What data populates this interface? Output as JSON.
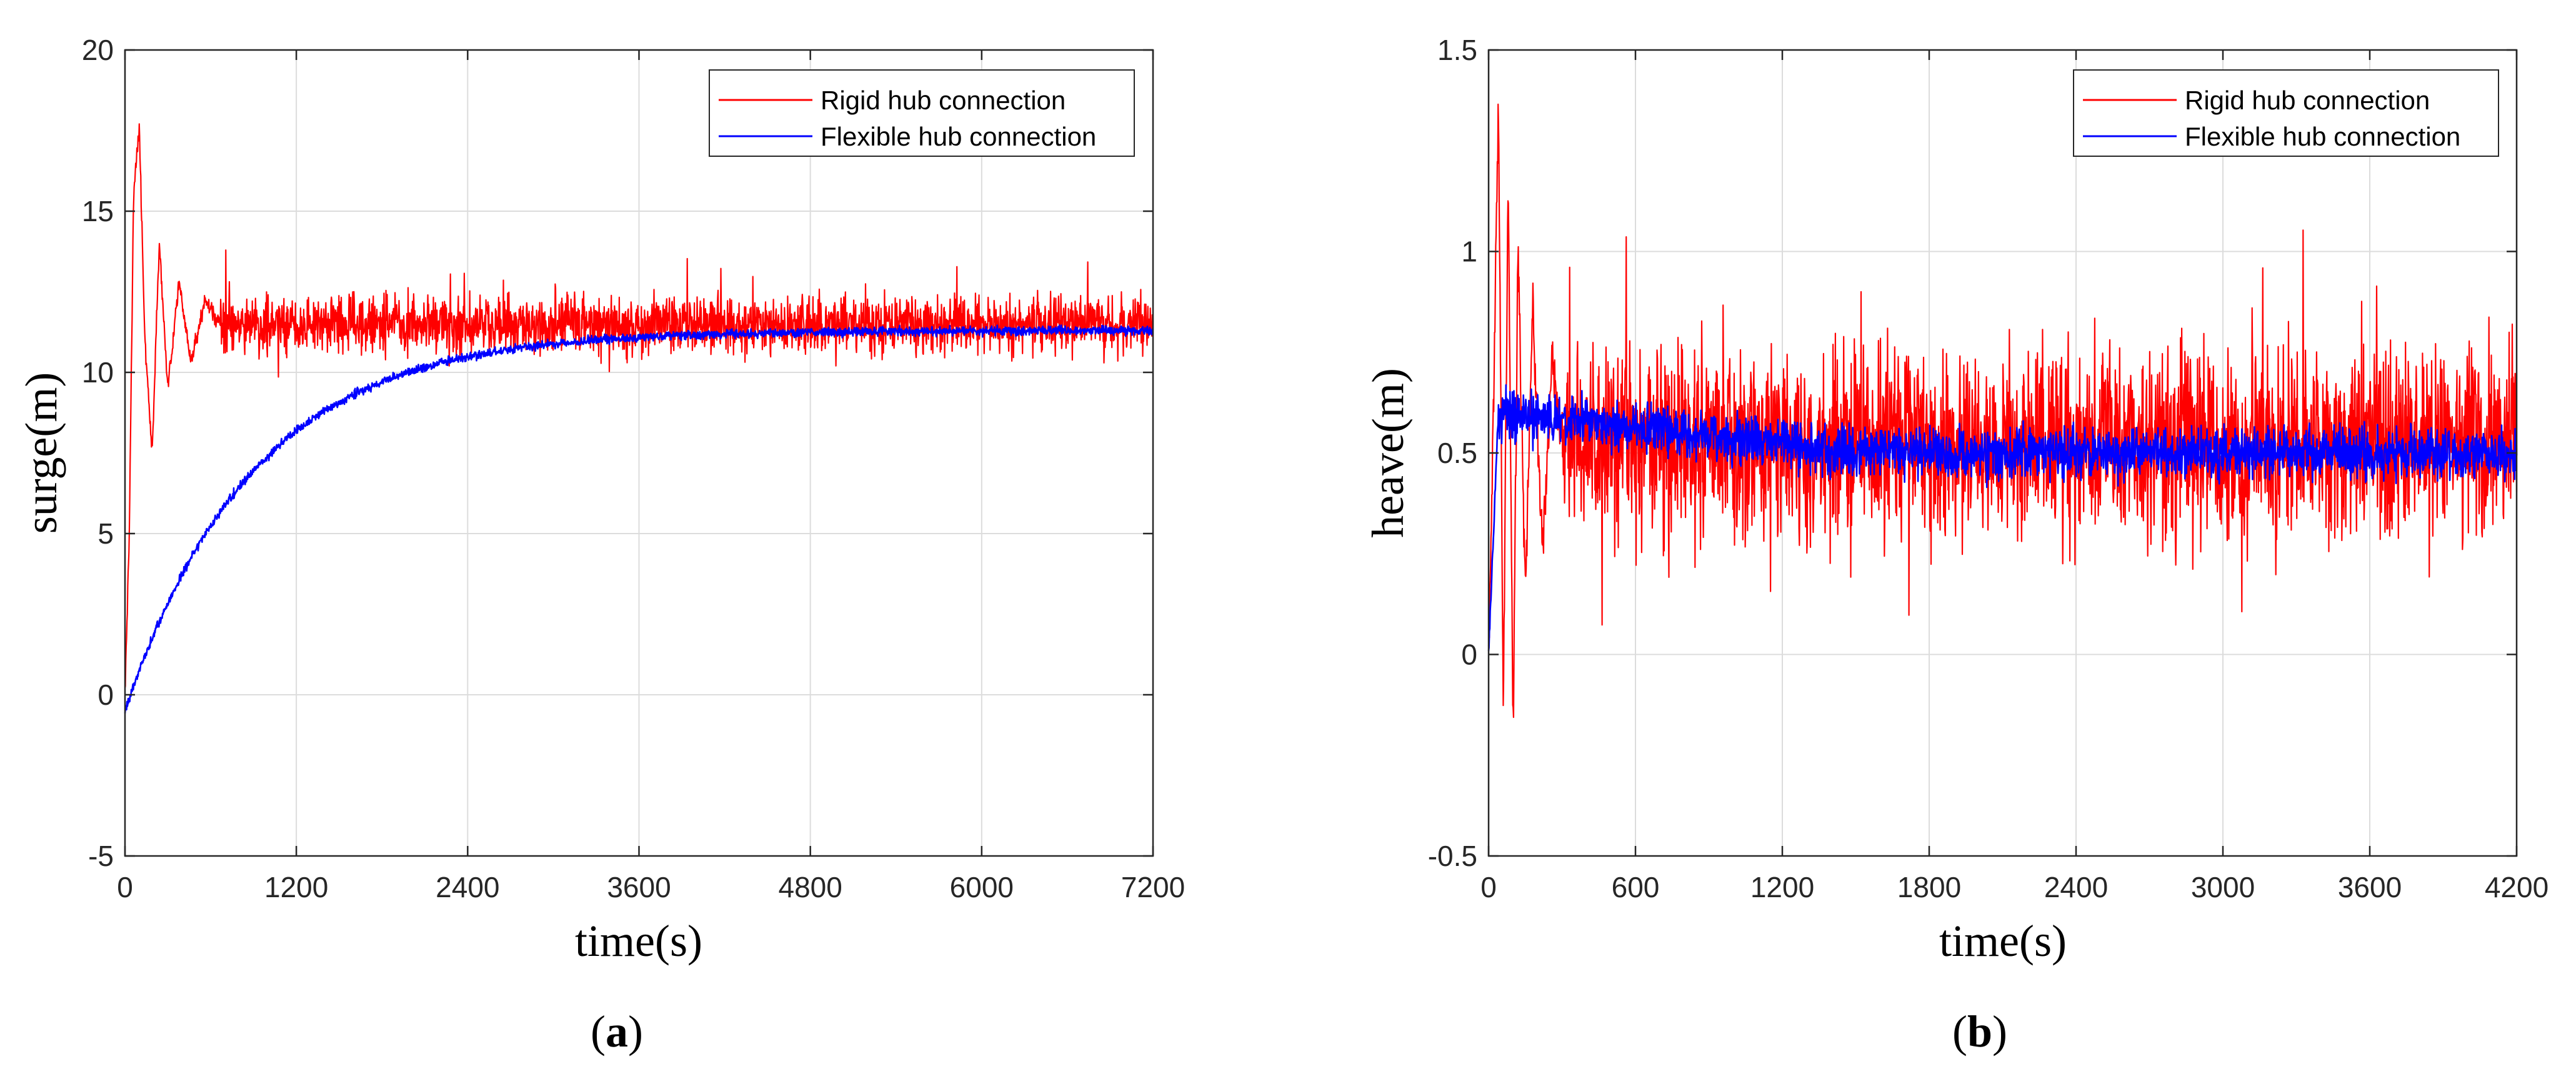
{
  "chart_data": [
    {
      "id": "a",
      "type": "line",
      "panel_label": "a",
      "title": "",
      "xlabel": "time(s)",
      "ylabel": "surge(m)",
      "xlim": [
        0,
        7200
      ],
      "ylim": [
        -5,
        20
      ],
      "xticks": [
        0,
        1200,
        2400,
        3600,
        4800,
        6000,
        7200
      ],
      "yticks": [
        -5,
        0,
        5,
        10,
        15,
        20
      ],
      "xtick_labels": [
        "0",
        "1200",
        "2400",
        "3600",
        "4800",
        "6000",
        "7200"
      ],
      "ytick_labels": [
        "-5",
        "0",
        "5",
        "10",
        "15",
        "20"
      ],
      "grid": true,
      "legend_position": "top-right",
      "series": [
        {
          "name": "Rigid hub connection",
          "color": "#ff0000",
          "model": {
            "kind": "transient_noise",
            "base": 11.5,
            "noise": 1.3,
            "transient": [
              [
                0,
                0
              ],
              [
                30,
                5
              ],
              [
                60,
                15.5
              ],
              [
                100,
                17.6
              ],
              [
                140,
                11
              ],
              [
                190,
                7.5
              ],
              [
                240,
                14
              ],
              [
                300,
                9.5
              ],
              [
                380,
                12.8
              ],
              [
                460,
                10.3
              ],
              [
                560,
                12.2
              ],
              [
                660,
                11.5
              ]
            ]
          }
        },
        {
          "name": "Flexible hub connection",
          "color": "#0000ff",
          "model": {
            "kind": "exp_rise",
            "start": -0.5,
            "end": 11.3,
            "tau": 900,
            "noise": 0.2
          }
        }
      ]
    },
    {
      "id": "b",
      "type": "line",
      "panel_label": "b",
      "title": "",
      "xlabel": "time(s)",
      "ylabel": "heave(m)",
      "xlim": [
        0,
        4200
      ],
      "ylim": [
        -0.5,
        1.5
      ],
      "xticks": [
        0,
        600,
        1200,
        1800,
        2400,
        3000,
        3600,
        4200
      ],
      "yticks": [
        -0.5,
        0,
        0.5,
        1,
        1.5
      ],
      "xtick_labels": [
        "0",
        "600",
        "1200",
        "1800",
        "2400",
        "3000",
        "3600",
        "4200"
      ],
      "ytick_labels": [
        "-0.5",
        "0",
        "0.5",
        "1",
        "1.5"
      ],
      "grid": true,
      "legend_position": "top-right",
      "series": [
        {
          "name": "Rigid hub connection",
          "color": "#ff0000",
          "model": {
            "kind": "transient_noise",
            "base": 0.52,
            "noise": 0.34,
            "transient": [
              [
                0,
                0
              ],
              [
                20,
                0.6
              ],
              [
                40,
                1.4
              ],
              [
                60,
                -0.15
              ],
              [
                80,
                1.2
              ],
              [
                100,
                -0.2
              ],
              [
                120,
                1.03
              ],
              [
                150,
                0.15
              ],
              [
                180,
                0.88
              ],
              [
                220,
                0.25
              ],
              [
                260,
                0.75
              ],
              [
                300,
                0.52
              ]
            ]
          }
        },
        {
          "name": "Flexible hub connection",
          "color": "#0000ff",
          "model": {
            "kind": "rise_noise",
            "start": 0,
            "peak": 0.6,
            "end": 0.5,
            "rise": 40,
            "decay_end": 1500,
            "noise": 0.09
          }
        }
      ]
    }
  ]
}
